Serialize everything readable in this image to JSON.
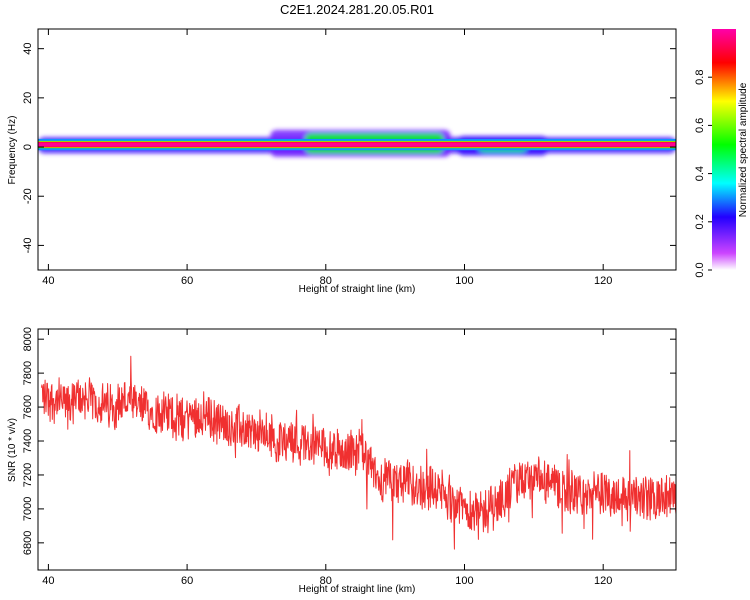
{
  "title": "C2E1.2024.281.20.05.R01",
  "chart_data": [
    {
      "type": "heatmap",
      "xlabel": "Height of straight line (km)",
      "ylabel": "Frequency (Hz)",
      "xlim": [
        38.5,
        130.5
      ],
      "ylim": [
        -50,
        48
      ],
      "x_ticks": [
        40,
        60,
        80,
        100,
        120
      ],
      "y_ticks": [
        -40,
        -20,
        0,
        20,
        40
      ],
      "colorbar": {
        "label": "Normalized spectral amplitude",
        "range": [
          0,
          1
        ],
        "ticks": [
          0.0,
          0.2,
          0.4,
          0.6,
          0.8
        ],
        "colors": [
          "#ffffff",
          "#cc44ff",
          "#2200ff",
          "#00ffff",
          "#00ff00",
          "#ffff00",
          "#ff0000",
          "#ff00aa"
        ]
      },
      "band": {
        "center_hz": 1,
        "core": [
          {
            "x1": 38.5,
            "x2": 130.5,
            "y1": -0.5,
            "y2": 2.5,
            "value": 0.95
          }
        ],
        "halo": [
          {
            "x1": 38.5,
            "x2": 130.5,
            "y1": -2.5,
            "y2": 4,
            "value": 0.2
          },
          {
            "x1": 72,
            "x2": 98,
            "y1": -4,
            "y2": 7,
            "value": 0.15
          },
          {
            "x1": 77,
            "x2": 97,
            "y1": -2.5,
            "y2": 5.5,
            "value": 0.5
          },
          {
            "x1": 99,
            "x2": 112,
            "y1": -3.5,
            "y2": 4.5,
            "value": 0.2
          },
          {
            "x1": 102,
            "x2": 109,
            "y1": -2,
            "y2": 1,
            "value": 0.45
          }
        ]
      }
    },
    {
      "type": "line",
      "xlabel": "Height of straight line (km)",
      "ylabel": "SNR (10 * v/v)",
      "xlim": [
        38.5,
        130.5
      ],
      "ylim": [
        6640,
        8060
      ],
      "x_ticks": [
        40,
        60,
        80,
        100,
        120
      ],
      "y_ticks": [
        6800,
        7000,
        7200,
        7400,
        7600,
        7800,
        8000
      ],
      "series": [
        {
          "color": "#f03030",
          "x": [
            39,
            41,
            43,
            45,
            47,
            49,
            51,
            53,
            55,
            57,
            59,
            61,
            63,
            65,
            67,
            69,
            71,
            73,
            75,
            77,
            79,
            81,
            83,
            85,
            87,
            89,
            91,
            93,
            95,
            97,
            99,
            101,
            103,
            105,
            107,
            109,
            111,
            113,
            115,
            117,
            119,
            121,
            123,
            125,
            127,
            129,
            130.5
          ],
          "y": [
            7680,
            7640,
            7620,
            7660,
            7620,
            7600,
            7640,
            7600,
            7570,
            7560,
            7520,
            7560,
            7550,
            7500,
            7480,
            7460,
            7440,
            7400,
            7420,
            7380,
            7380,
            7350,
            7330,
            7350,
            7200,
            7160,
            7150,
            7140,
            7130,
            7090,
            7030,
            6990,
            6980,
            7040,
            7140,
            7180,
            7160,
            7140,
            7090,
            7090,
            7080,
            7080,
            7080,
            7070,
            7060,
            7060,
            7060
          ]
        }
      ]
    }
  ]
}
